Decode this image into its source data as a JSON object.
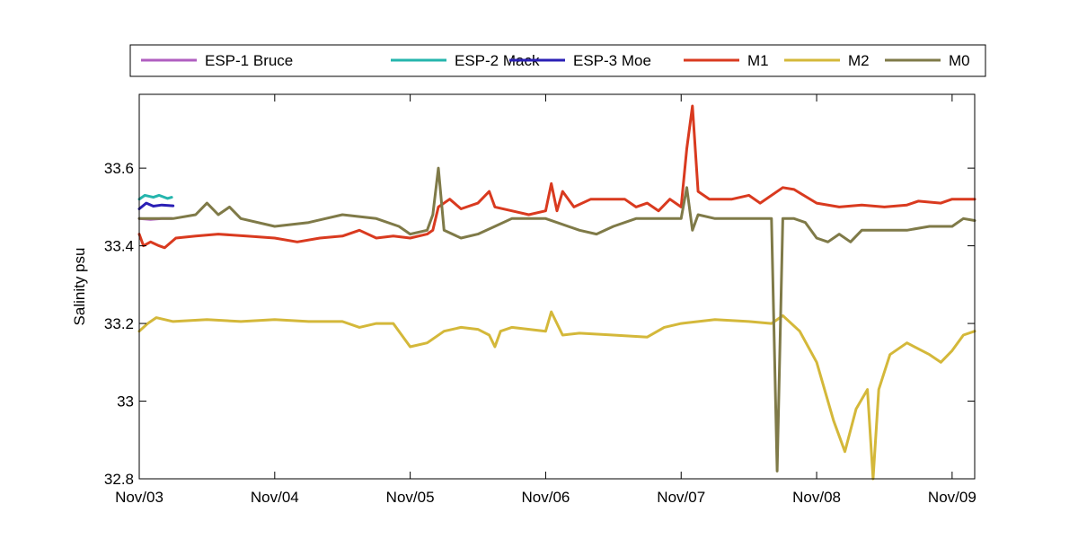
{
  "chart_data": {
    "type": "line",
    "title": "",
    "xlabel": "",
    "ylabel": "Salinity psu",
    "x_ticks": [
      {
        "x": "2007-11-03",
        "label": "Nov/03"
      },
      {
        "x": "2007-11-04",
        "label": "Nov/04"
      },
      {
        "x": "2007-11-05",
        "label": "Nov/05"
      },
      {
        "x": "2007-11-06",
        "label": "Nov/06"
      },
      {
        "x": "2007-11-07",
        "label": "Nov/07"
      },
      {
        "x": "2007-11-08",
        "label": "Nov/08"
      },
      {
        "x": "2007-11-09",
        "label": "Nov/09"
      }
    ],
    "y_ticks": [
      {
        "y": 32.8,
        "label": "32.8"
      },
      {
        "y": 33.0,
        "label": "33"
      },
      {
        "y": 33.2,
        "label": "33.2"
      },
      {
        "y": 33.4,
        "label": "33.4"
      },
      {
        "y": 33.6,
        "label": "33.6"
      }
    ],
    "xlim": [
      "2007-11-03 00:00",
      "2007-11-09 04:00"
    ],
    "ylim": [
      32.8,
      33.79
    ],
    "grid": false,
    "legend_position": "top, above plot",
    "series": [
      {
        "name": "ESP-1 Bruce",
        "color": "#b05ec0",
        "points": [
          [
            "2007-11-03 00:00",
            33.47
          ],
          [
            "2007-11-03 02:00",
            33.468
          ],
          [
            "2007-11-03 04:00",
            33.47
          ],
          [
            "2007-11-03 05:45",
            33.47
          ]
        ]
      },
      {
        "name": "ESP-2 Mack",
        "color": "#25b5ad",
        "points": [
          [
            "2007-11-03 00:00",
            33.52
          ],
          [
            "2007-11-03 01:00",
            33.53
          ],
          [
            "2007-11-03 02:30",
            33.525
          ],
          [
            "2007-11-03 03:30",
            33.53
          ],
          [
            "2007-11-03 05:00",
            33.522
          ],
          [
            "2007-11-03 05:45",
            33.525
          ]
        ]
      },
      {
        "name": "ESP-3 Moe",
        "color": "#2a1fb5",
        "points": [
          [
            "2007-11-03 00:00",
            33.495
          ],
          [
            "2007-11-03 01:15",
            33.51
          ],
          [
            "2007-11-03 02:30",
            33.502
          ],
          [
            "2007-11-03 04:00",
            33.505
          ],
          [
            "2007-11-03 06:00",
            33.503
          ]
        ]
      },
      {
        "name": "M1",
        "color": "#d93a1f",
        "points": [
          [
            "2007-11-03 00:00",
            33.43
          ],
          [
            "2007-11-03 00:45",
            33.4
          ],
          [
            "2007-11-03 02:00",
            33.41
          ],
          [
            "2007-11-03 03:30",
            33.4
          ],
          [
            "2007-11-03 04:30",
            33.395
          ],
          [
            "2007-11-03 06:30",
            33.42
          ],
          [
            "2007-11-03 10:00",
            33.425
          ],
          [
            "2007-11-03 14:00",
            33.43
          ],
          [
            "2007-11-03 19:00",
            33.425
          ],
          [
            "2007-11-04 00:00",
            33.42
          ],
          [
            "2007-11-04 04:00",
            33.41
          ],
          [
            "2007-11-04 08:00",
            33.42
          ],
          [
            "2007-11-04 12:00",
            33.425
          ],
          [
            "2007-11-04 15:00",
            33.44
          ],
          [
            "2007-11-04 18:00",
            33.42
          ],
          [
            "2007-11-04 21:00",
            33.425
          ],
          [
            "2007-11-05 00:00",
            33.42
          ],
          [
            "2007-11-05 03:00",
            33.43
          ],
          [
            "2007-11-05 04:00",
            33.44
          ],
          [
            "2007-11-05 05:00",
            33.5
          ],
          [
            "2007-11-05 07:00",
            33.52
          ],
          [
            "2007-11-05 09:00",
            33.495
          ],
          [
            "2007-11-05 12:00",
            33.51
          ],
          [
            "2007-11-05 14:00",
            33.54
          ],
          [
            "2007-11-05 15:00",
            33.5
          ],
          [
            "2007-11-05 18:00",
            33.49
          ],
          [
            "2007-11-05 21:00",
            33.48
          ],
          [
            "2007-11-06 00:00",
            33.49
          ],
          [
            "2007-11-06 01:00",
            33.56
          ],
          [
            "2007-11-06 02:00",
            33.49
          ],
          [
            "2007-11-06 03:00",
            33.54
          ],
          [
            "2007-11-06 05:00",
            33.5
          ],
          [
            "2007-11-06 08:00",
            33.52
          ],
          [
            "2007-11-06 12:00",
            33.52
          ],
          [
            "2007-11-06 14:00",
            33.52
          ],
          [
            "2007-11-06 16:00",
            33.5
          ],
          [
            "2007-11-06 18:00",
            33.51
          ],
          [
            "2007-11-06 20:00",
            33.49
          ],
          [
            "2007-11-06 22:00",
            33.52
          ],
          [
            "2007-11-07 00:00",
            33.5
          ],
          [
            "2007-11-07 01:00",
            33.65
          ],
          [
            "2007-11-07 02:00",
            33.76
          ],
          [
            "2007-11-07 03:00",
            33.54
          ],
          [
            "2007-11-07 05:00",
            33.52
          ],
          [
            "2007-11-07 09:00",
            33.52
          ],
          [
            "2007-11-07 12:00",
            33.53
          ],
          [
            "2007-11-07 14:00",
            33.51
          ],
          [
            "2007-11-07 18:00",
            33.55
          ],
          [
            "2007-11-07 20:00",
            33.545
          ],
          [
            "2007-11-08 00:00",
            33.51
          ],
          [
            "2007-11-08 04:00",
            33.5
          ],
          [
            "2007-11-08 08:00",
            33.505
          ],
          [
            "2007-11-08 12:00",
            33.5
          ],
          [
            "2007-11-08 16:00",
            33.505
          ],
          [
            "2007-11-08 18:00",
            33.515
          ],
          [
            "2007-11-08 22:00",
            33.51
          ],
          [
            "2007-11-09 00:00",
            33.52
          ],
          [
            "2007-11-09 04:00",
            33.52
          ]
        ]
      },
      {
        "name": "M2",
        "color": "#d4b83a",
        "points": [
          [
            "2007-11-03 00:00",
            33.18
          ],
          [
            "2007-11-03 01:30",
            33.2
          ],
          [
            "2007-11-03 03:00",
            33.215
          ],
          [
            "2007-11-03 06:00",
            33.205
          ],
          [
            "2007-11-03 12:00",
            33.21
          ],
          [
            "2007-11-03 18:00",
            33.205
          ],
          [
            "2007-11-04 00:00",
            33.21
          ],
          [
            "2007-11-04 06:00",
            33.205
          ],
          [
            "2007-11-04 12:00",
            33.205
          ],
          [
            "2007-11-04 15:00",
            33.19
          ],
          [
            "2007-11-04 18:00",
            33.2
          ],
          [
            "2007-11-04 21:00",
            33.2
          ],
          [
            "2007-11-05 00:00",
            33.14
          ],
          [
            "2007-11-05 03:00",
            33.15
          ],
          [
            "2007-11-05 06:00",
            33.18
          ],
          [
            "2007-11-05 09:00",
            33.19
          ],
          [
            "2007-11-05 12:00",
            33.185
          ],
          [
            "2007-11-05 14:00",
            33.17
          ],
          [
            "2007-11-05 15:00",
            33.14
          ],
          [
            "2007-11-05 16:00",
            33.18
          ],
          [
            "2007-11-05 18:00",
            33.19
          ],
          [
            "2007-11-06 00:00",
            33.18
          ],
          [
            "2007-11-06 01:00",
            33.23
          ],
          [
            "2007-11-06 02:00",
            33.2
          ],
          [
            "2007-11-06 03:00",
            33.17
          ],
          [
            "2007-11-06 06:00",
            33.175
          ],
          [
            "2007-11-06 12:00",
            33.17
          ],
          [
            "2007-11-06 18:00",
            33.165
          ],
          [
            "2007-11-06 21:00",
            33.19
          ],
          [
            "2007-11-07 00:00",
            33.2
          ],
          [
            "2007-11-07 06:00",
            33.21
          ],
          [
            "2007-11-07 12:00",
            33.205
          ],
          [
            "2007-11-07 16:00",
            33.2
          ],
          [
            "2007-11-07 18:00",
            33.22
          ],
          [
            "2007-11-07 21:00",
            33.18
          ],
          [
            "2007-11-08 00:00",
            33.1
          ],
          [
            "2007-11-08 03:00",
            32.95
          ],
          [
            "2007-11-08 05:00",
            32.87
          ],
          [
            "2007-11-08 07:00",
            32.98
          ],
          [
            "2007-11-08 09:00",
            33.03
          ],
          [
            "2007-11-08 10:00",
            32.8
          ],
          [
            "2007-11-08 11:00",
            33.03
          ],
          [
            "2007-11-08 13:00",
            33.12
          ],
          [
            "2007-11-08 16:00",
            33.15
          ],
          [
            "2007-11-08 20:00",
            33.12
          ],
          [
            "2007-11-08 22:00",
            33.1
          ],
          [
            "2007-11-09 00:00",
            33.13
          ],
          [
            "2007-11-09 02:00",
            33.17
          ],
          [
            "2007-11-09 04:00",
            33.18
          ]
        ]
      },
      {
        "name": "M0",
        "color": "#7f7a48",
        "points": [
          [
            "2007-11-03 00:00",
            33.47
          ],
          [
            "2007-11-03 06:00",
            33.47
          ],
          [
            "2007-11-03 10:00",
            33.48
          ],
          [
            "2007-11-03 12:00",
            33.51
          ],
          [
            "2007-11-03 14:00",
            33.48
          ],
          [
            "2007-11-03 16:00",
            33.5
          ],
          [
            "2007-11-03 18:00",
            33.47
          ],
          [
            "2007-11-04 00:00",
            33.45
          ],
          [
            "2007-11-04 06:00",
            33.46
          ],
          [
            "2007-11-04 09:00",
            33.47
          ],
          [
            "2007-11-04 12:00",
            33.48
          ],
          [
            "2007-11-04 18:00",
            33.47
          ],
          [
            "2007-11-04 22:00",
            33.45
          ],
          [
            "2007-11-05 00:00",
            33.43
          ],
          [
            "2007-11-05 03:00",
            33.44
          ],
          [
            "2007-11-05 04:00",
            33.48
          ],
          [
            "2007-11-05 05:00",
            33.6
          ],
          [
            "2007-11-05 06:00",
            33.44
          ],
          [
            "2007-11-05 09:00",
            33.42
          ],
          [
            "2007-11-05 12:00",
            33.43
          ],
          [
            "2007-11-05 15:00",
            33.45
          ],
          [
            "2007-11-05 18:00",
            33.47
          ],
          [
            "2007-11-06 00:00",
            33.47
          ],
          [
            "2007-11-06 06:00",
            33.44
          ],
          [
            "2007-11-06 09:00",
            33.43
          ],
          [
            "2007-11-06 12:00",
            33.45
          ],
          [
            "2007-11-06 16:00",
            33.47
          ],
          [
            "2007-11-07 00:00",
            33.47
          ],
          [
            "2007-11-07 01:00",
            33.55
          ],
          [
            "2007-11-07 02:00",
            33.44
          ],
          [
            "2007-11-07 03:00",
            33.48
          ],
          [
            "2007-11-07 06:00",
            33.47
          ],
          [
            "2007-11-07 12:00",
            33.47
          ],
          [
            "2007-11-07 16:00",
            33.47
          ],
          [
            "2007-11-07 17:00",
            32.82
          ],
          [
            "2007-11-07 18:00",
            33.47
          ],
          [
            "2007-11-07 20:00",
            33.47
          ],
          [
            "2007-11-07 22:00",
            33.46
          ],
          [
            "2007-11-08 00:00",
            33.42
          ],
          [
            "2007-11-08 02:00",
            33.41
          ],
          [
            "2007-11-08 04:00",
            33.43
          ],
          [
            "2007-11-08 06:00",
            33.41
          ],
          [
            "2007-11-08 08:00",
            33.44
          ],
          [
            "2007-11-08 12:00",
            33.44
          ],
          [
            "2007-11-08 16:00",
            33.44
          ],
          [
            "2007-11-08 20:00",
            33.45
          ],
          [
            "2007-11-09 00:00",
            33.45
          ],
          [
            "2007-11-09 02:00",
            33.47
          ],
          [
            "2007-11-09 04:00",
            33.465
          ]
        ]
      }
    ]
  }
}
